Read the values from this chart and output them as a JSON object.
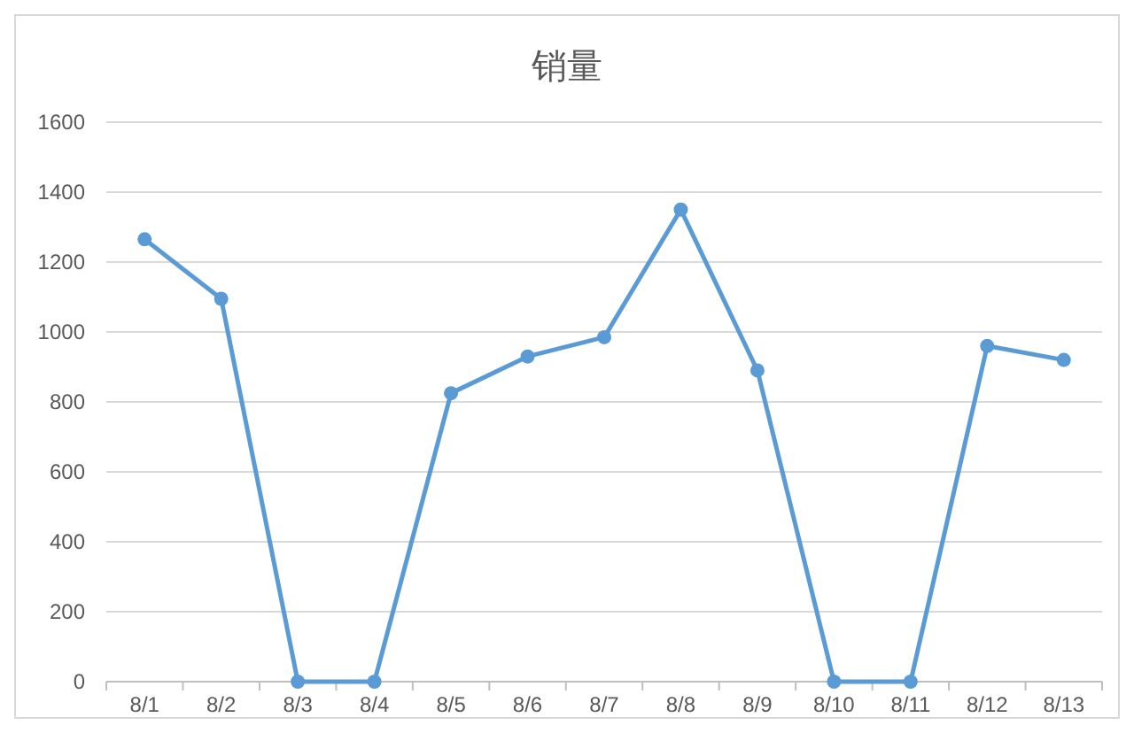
{
  "chart_data": {
    "type": "line",
    "title": "销量",
    "categories": [
      "8/1",
      "8/2",
      "8/3",
      "8/4",
      "8/5",
      "8/6",
      "8/7",
      "8/8",
      "8/9",
      "8/10",
      "8/11",
      "8/12",
      "8/13"
    ],
    "series": [
      {
        "color": "#5b9bd5",
        "values": [
          1265,
          1095,
          0,
          0,
          825,
          930,
          985,
          1350,
          890,
          0,
          0,
          960,
          920
        ]
      }
    ],
    "ylim": [
      0,
      1600
    ],
    "yticks": [
      0,
      200,
      400,
      600,
      800,
      1000,
      1200,
      1400,
      1600
    ],
    "grid": "y",
    "marker": "circle",
    "line_style": "solid"
  }
}
